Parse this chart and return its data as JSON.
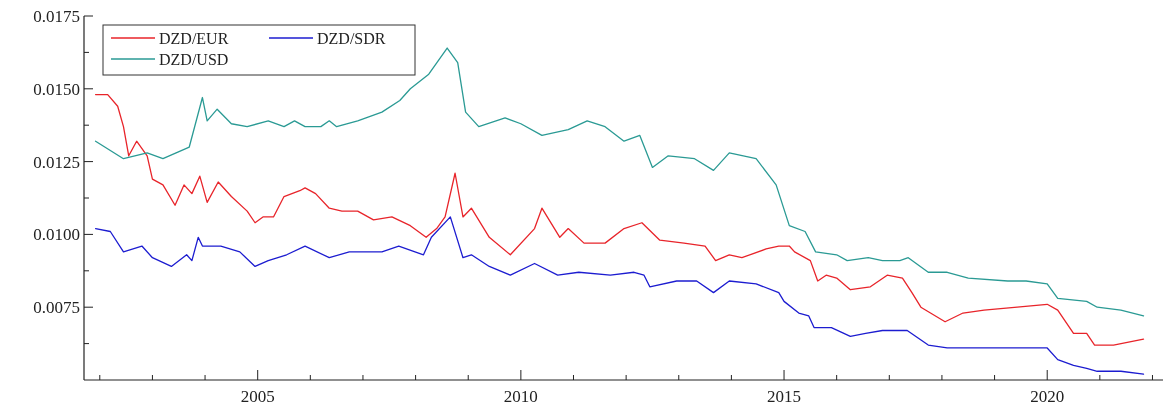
{
  "chart_data": {
    "type": "line",
    "xlim": [
      2001.7,
      2022.2
    ],
    "ylim": [
      0.005,
      0.0175
    ],
    "xticks": [
      {
        "value": 2002,
        "label": null
      },
      {
        "value": 2003,
        "label": null
      },
      {
        "value": 2004,
        "label": null
      },
      2005,
      {
        "value": 2006,
        "label": null
      },
      {
        "value": 2007,
        "label": null
      },
      {
        "value": 2008,
        "label": null
      },
      {
        "value": 2009,
        "label": null
      },
      2010,
      {
        "value": 2011,
        "label": null
      },
      {
        "value": 2012,
        "label": null
      },
      {
        "value": 2013,
        "label": null
      },
      {
        "value": 2014,
        "label": null
      },
      2015,
      {
        "value": 2016,
        "label": null
      },
      {
        "value": 2017,
        "label": null
      },
      {
        "value": 2018,
        "label": null
      },
      {
        "value": 2019,
        "label": null
      },
      2020,
      {
        "value": 2021,
        "label": null
      },
      {
        "value": 2022,
        "label": null
      }
    ],
    "yticks": [
      {
        "value": 0.00625,
        "label": null
      },
      {
        "value": 0.0075,
        "label": "0.0075"
      },
      {
        "value": 0.00875,
        "label": null
      },
      {
        "value": 0.01,
        "label": "0.0100"
      },
      {
        "value": 0.01125,
        "label": null
      },
      {
        "value": 0.0125,
        "label": "0.0125"
      },
      {
        "value": 0.01375,
        "label": null
      },
      {
        "value": 0.015,
        "label": "0.0150"
      },
      {
        "value": 0.01625,
        "label": null
      },
      {
        "value": 0.0175,
        "label": "0.0175"
      }
    ],
    "grid": false,
    "legend": "top left",
    "marker": "none",
    "line_style": "solid",
    "series": [
      {
        "name": "DZD/EUR",
        "color": "#e8242a",
        "x": [
          2001.92,
          2002.15,
          2002.34,
          2002.45,
          2002.55,
          2002.7,
          2002.9,
          2003.0,
          2003.2,
          2003.43,
          2003.6,
          2003.75,
          2003.9,
          2004.04,
          2004.25,
          2004.5,
          2004.8,
          2004.95,
          2005.1,
          2005.3,
          2005.5,
          2005.8,
          2005.9,
          2006.1,
          2006.36,
          2006.6,
          2006.9,
          2007.2,
          2007.55,
          2007.9,
          2008.2,
          2008.4,
          2008.56,
          2008.75,
          2008.9,
          2009.06,
          2009.4,
          2009.8,
          2010.26,
          2010.4,
          2010.74,
          2010.9,
          2011.2,
          2011.6,
          2011.96,
          2012.3,
          2012.64,
          2013.1,
          2013.5,
          2013.7,
          2013.96,
          2014.2,
          2014.66,
          2014.9,
          2015.1,
          2015.2,
          2015.5,
          2015.64,
          2015.8,
          2016.0,
          2016.26,
          2016.64,
          2016.96,
          2017.25,
          2017.43,
          2017.6,
          2018.06,
          2018.4,
          2018.8,
          2019.43,
          2020.0,
          2020.2,
          2020.5,
          2020.75,
          2020.9,
          2021.26,
          2021.83
        ],
        "values": [
          0.0148,
          0.0148,
          0.0144,
          0.0137,
          0.0127,
          0.0132,
          0.0127,
          0.0119,
          0.0117,
          0.011,
          0.0117,
          0.0114,
          0.012,
          0.0111,
          0.0118,
          0.0113,
          0.0108,
          0.0104,
          0.0106,
          0.0106,
          0.0113,
          0.0115,
          0.0116,
          0.0114,
          0.0109,
          0.0108,
          0.0108,
          0.0105,
          0.0106,
          0.0103,
          0.0099,
          0.0102,
          0.0106,
          0.0121,
          0.0106,
          0.0109,
          0.0099,
          0.0093,
          0.0102,
          0.0109,
          0.0099,
          0.0102,
          0.0097,
          0.0097,
          0.0102,
          0.0104,
          0.0098,
          0.0097,
          0.0096,
          0.0091,
          0.0093,
          0.0092,
          0.0095,
          0.0096,
          0.0096,
          0.0094,
          0.0091,
          0.0084,
          0.0086,
          0.0085,
          0.0081,
          0.0082,
          0.0086,
          0.0085,
          0.008,
          0.0075,
          0.007,
          0.0073,
          0.0074,
          0.0075,
          0.0076,
          0.0074,
          0.0066,
          0.0066,
          0.0062,
          0.0062,
          0.0064
        ]
      },
      {
        "name": "DZD/SDR",
        "color": "#1c1cd0",
        "x": [
          2001.92,
          2002.2,
          2002.45,
          2002.8,
          2003.0,
          2003.36,
          2003.65,
          2003.75,
          2003.87,
          2003.95,
          2004.3,
          2004.66,
          2004.95,
          2005.2,
          2005.55,
          2005.9,
          2006.36,
          2006.74,
          2007.36,
          2007.68,
          2008.15,
          2008.3,
          2008.66,
          2008.9,
          2009.06,
          2009.4,
          2009.8,
          2010.26,
          2010.7,
          2011.1,
          2011.7,
          2012.15,
          2012.34,
          2012.45,
          2012.96,
          2013.34,
          2013.66,
          2013.96,
          2014.47,
          2014.9,
          2015.0,
          2015.28,
          2015.47,
          2015.57,
          2015.9,
          2016.26,
          2016.55,
          2016.87,
          2017.34,
          2017.74,
          2018.1,
          2018.74,
          2019.5,
          2020.0,
          2020.2,
          2020.5,
          2020.75,
          2020.95,
          2021.4,
          2021.83
        ],
        "values": [
          0.0102,
          0.0101,
          0.0094,
          0.0096,
          0.0092,
          0.0089,
          0.0093,
          0.0091,
          0.0099,
          0.0096,
          0.0096,
          0.0094,
          0.0089,
          0.0091,
          0.0093,
          0.0096,
          0.0092,
          0.0094,
          0.0094,
          0.0096,
          0.0093,
          0.0099,
          0.0106,
          0.0092,
          0.0093,
          0.0089,
          0.0086,
          0.009,
          0.0086,
          0.0087,
          0.0086,
          0.0087,
          0.0086,
          0.0082,
          0.0084,
          0.0084,
          0.008,
          0.0084,
          0.0083,
          0.008,
          0.0077,
          0.0073,
          0.0072,
          0.0068,
          0.0068,
          0.0065,
          0.0066,
          0.0067,
          0.0067,
          0.0062,
          0.0061,
          0.0061,
          0.0061,
          0.0061,
          0.0057,
          0.0055,
          0.0054,
          0.0053,
          0.0053,
          0.0052
        ]
      },
      {
        "name": "DZD/USD",
        "color": "#2a9a94",
        "x": [
          2001.92,
          2002.45,
          2002.9,
          2003.2,
          2003.7,
          2003.95,
          2004.04,
          2004.23,
          2004.5,
          2004.8,
          2005.2,
          2005.5,
          2005.7,
          2005.9,
          2006.2,
          2006.36,
          2006.5,
          2006.9,
          2007.36,
          2007.7,
          2007.9,
          2008.25,
          2008.6,
          2008.8,
          2008.95,
          2009.2,
          2009.7,
          2010.0,
          2010.4,
          2010.9,
          2011.26,
          2011.6,
          2011.96,
          2012.26,
          2012.5,
          2012.8,
          2013.3,
          2013.66,
          2013.96,
          2014.47,
          2014.85,
          2015.1,
          2015.4,
          2015.6,
          2016.0,
          2016.2,
          2016.6,
          2016.87,
          2017.2,
          2017.36,
          2017.74,
          2018.1,
          2018.5,
          2019.25,
          2019.6,
          2020.0,
          2020.2,
          2020.75,
          2020.95,
          2021.4,
          2021.83
        ],
        "values": [
          0.0132,
          0.0126,
          0.0128,
          0.0126,
          0.013,
          0.0147,
          0.0139,
          0.0143,
          0.0138,
          0.0137,
          0.0139,
          0.0137,
          0.0139,
          0.0137,
          0.0137,
          0.0139,
          0.0137,
          0.0139,
          0.0142,
          0.0146,
          0.015,
          0.0155,
          0.0164,
          0.0159,
          0.0142,
          0.0137,
          0.014,
          0.0138,
          0.0134,
          0.0136,
          0.0139,
          0.0137,
          0.0132,
          0.0134,
          0.0123,
          0.0127,
          0.0126,
          0.0122,
          0.0128,
          0.0126,
          0.0117,
          0.0103,
          0.0101,
          0.0094,
          0.0093,
          0.0091,
          0.0092,
          0.0091,
          0.0091,
          0.0092,
          0.0087,
          0.0087,
          0.0085,
          0.0084,
          0.0084,
          0.0083,
          0.0078,
          0.0077,
          0.0075,
          0.0074,
          0.0072
        ]
      }
    ]
  }
}
